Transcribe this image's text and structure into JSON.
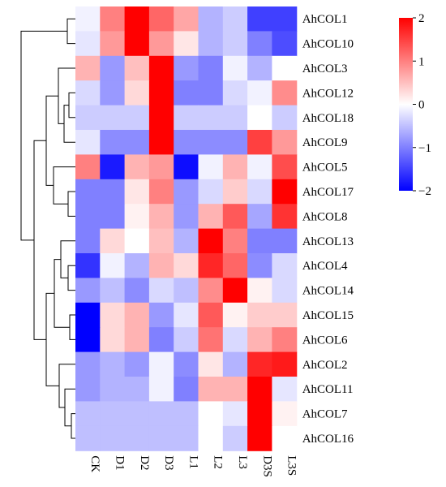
{
  "chart_data": {
    "type": "heatmap",
    "columns": [
      "CK",
      "D1",
      "D2",
      "D3",
      "L1",
      "L2",
      "L3",
      "D3S",
      "L3S"
    ],
    "rows": [
      "AhCOL1",
      "AhCOL10",
      "AhCOL3",
      "AhCOL12",
      "AhCOL18",
      "AhCOL9",
      "AhCOL5",
      "AhCOL17",
      "AhCOL8",
      "AhCOL13",
      "AhCOL4",
      "AhCOL14",
      "AhCOL15",
      "AhCOL6",
      "AhCOL2",
      "AhCOL11",
      "AhCOL7",
      "AhCOL16"
    ],
    "values": [
      [
        -0.1,
        1.0,
        2.0,
        1.2,
        0.7,
        -0.6,
        -0.4,
        -1.5,
        -1.5
      ],
      [
        -0.2,
        0.8,
        2.0,
        0.8,
        0.2,
        -0.6,
        -0.4,
        -1.0,
        -1.4
      ],
      [
        0.6,
        -0.8,
        0.5,
        2.0,
        -0.8,
        -1.0,
        -0.1,
        -0.6,
        0.0
      ],
      [
        -0.3,
        -0.8,
        0.3,
        2.0,
        -1.0,
        -1.0,
        -0.3,
        -0.1,
        0.9
      ],
      [
        -0.4,
        -0.4,
        -0.4,
        2.0,
        -0.4,
        -0.4,
        -0.4,
        0.0,
        -0.4
      ],
      [
        -0.2,
        -0.9,
        -0.9,
        2.0,
        -0.9,
        -0.9,
        -0.9,
        1.5,
        0.8
      ],
      [
        1.0,
        -1.8,
        0.6,
        0.8,
        -1.9,
        -0.1,
        0.6,
        -0.1,
        1.4
      ],
      [
        -1.0,
        -1.0,
        0.2,
        1.0,
        -0.8,
        -0.3,
        0.4,
        -0.3,
        2.0
      ],
      [
        -1.0,
        -1.0,
        0.1,
        0.6,
        -0.8,
        0.6,
        1.3,
        -0.7,
        1.6
      ],
      [
        -1.0,
        0.3,
        0.0,
        0.5,
        -0.6,
        2.0,
        1.0,
        -1.0,
        -1.0
      ],
      [
        -1.6,
        -0.1,
        -0.6,
        0.6,
        0.3,
        1.7,
        1.2,
        -0.9,
        -0.3
      ],
      [
        -0.8,
        -0.5,
        -0.9,
        -0.3,
        -0.5,
        0.9,
        2.0,
        0.1,
        -0.3
      ],
      [
        -2.0,
        0.3,
        0.6,
        -0.8,
        -0.2,
        1.3,
        0.1,
        0.4,
        0.4
      ],
      [
        -2.0,
        0.3,
        0.6,
        -1.0,
        -0.4,
        1.1,
        -0.3,
        0.6,
        1.0
      ],
      [
        -0.8,
        -0.6,
        -0.8,
        -0.1,
        -0.9,
        0.2,
        -0.6,
        1.7,
        1.8
      ],
      [
        -0.8,
        -0.6,
        -0.6,
        -0.1,
        -1.0,
        0.6,
        0.6,
        2.0,
        -0.2
      ],
      [
        -0.5,
        -0.5,
        -0.5,
        -0.5,
        -0.5,
        0.0,
        -0.2,
        2.0,
        0.1
      ],
      [
        -0.5,
        -0.5,
        -0.5,
        -0.5,
        -0.5,
        0.0,
        -0.4,
        2.0,
        0.0
      ]
    ],
    "color_scale": {
      "min": -2,
      "max": 2,
      "low_color": "#0000ff",
      "mid_color": "#ffffff",
      "high_color": "#ff0000"
    },
    "colorbar_ticks": [
      "2",
      "1",
      "0",
      "−1",
      "−2"
    ],
    "row_dendrogram": true,
    "legend_placement": "right"
  }
}
